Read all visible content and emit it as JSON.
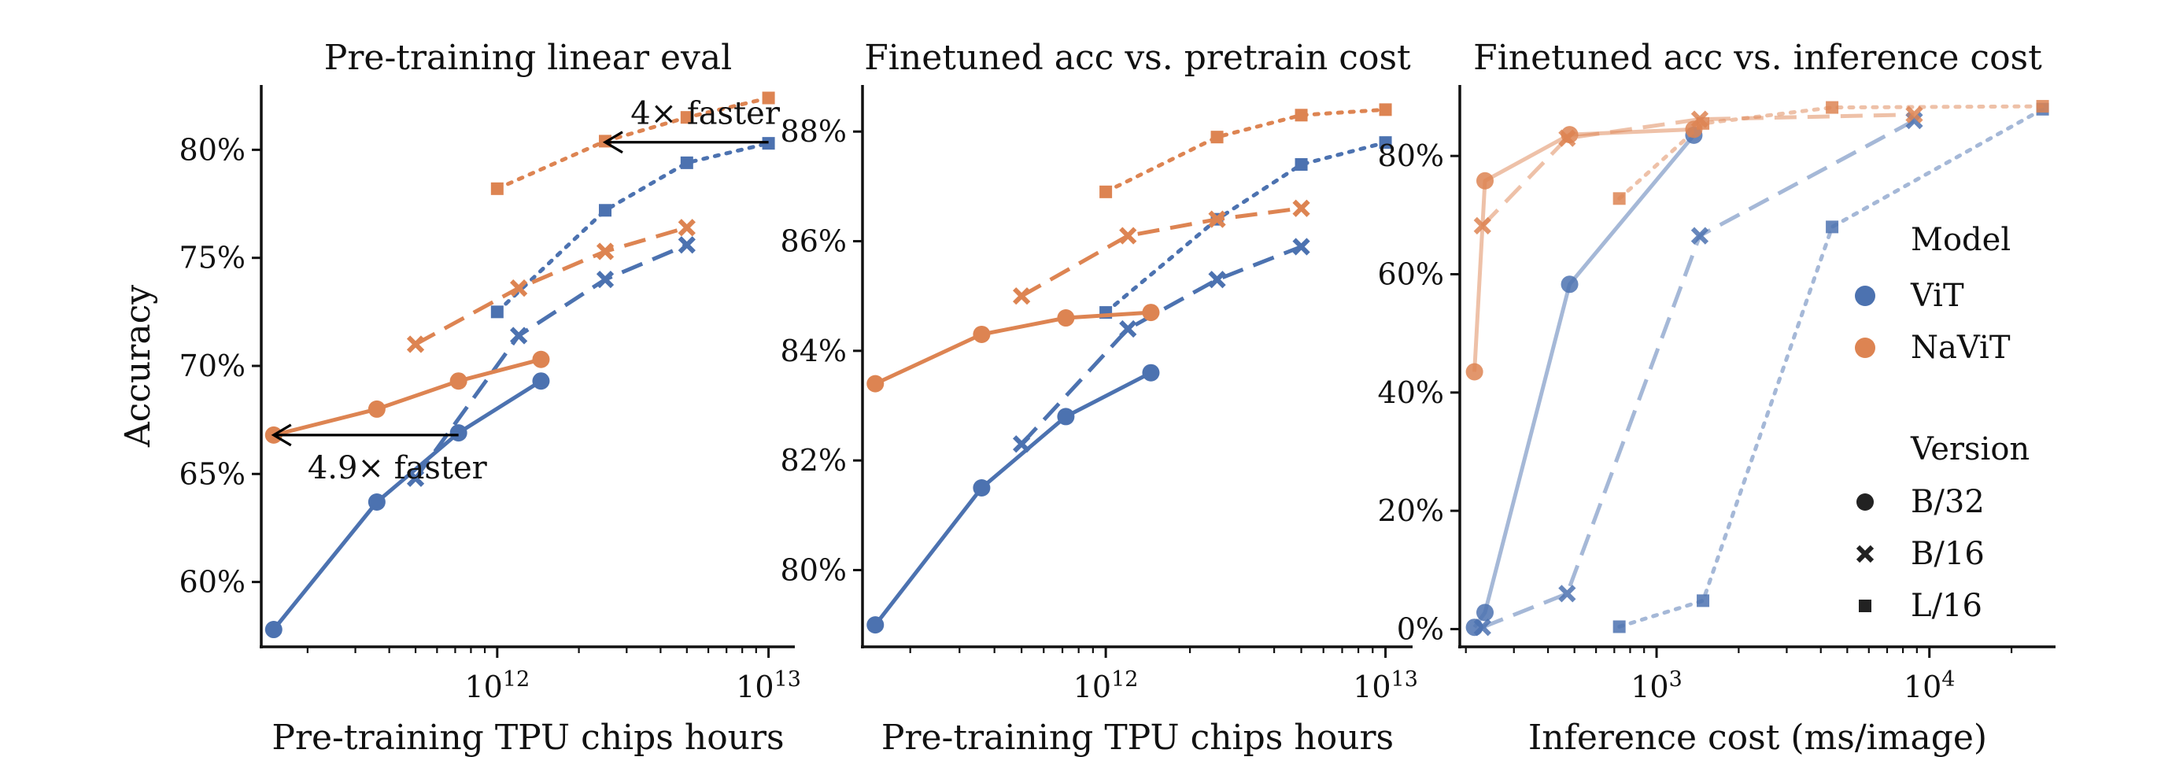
{
  "colors": {
    "vit": "#4c72b0",
    "navit": "#dd8452",
    "axis": "#111111"
  },
  "chart_data": [
    {
      "type": "line",
      "title": "Pre-training linear eval",
      "xlabel": "Pre-training TPU chips hours",
      "ylabel": "Accuracy",
      "xscale": "log",
      "xlim": [
        135000000000.0,
        12500000000000.0
      ],
      "ylim": [
        57,
        83
      ],
      "xticks": [
        {
          "value": 1000000000000.0,
          "label": "10^12"
        },
        {
          "value": 10000000000000.0,
          "label": "10^13"
        }
      ],
      "yticks": [
        {
          "value": 60,
          "label": "60%"
        },
        {
          "value": 65,
          "label": "65%"
        },
        {
          "value": 70,
          "label": "70%"
        },
        {
          "value": 75,
          "label": "75%"
        },
        {
          "value": 80,
          "label": "80%"
        }
      ],
      "series": [
        {
          "name": "ViT B/32",
          "model": "ViT",
          "version": "B/32",
          "x": [
            150000000000.0,
            360000000000.0,
            720000000000.0,
            1450000000000.0
          ],
          "y": [
            57.8,
            63.7,
            66.9,
            69.3
          ]
        },
        {
          "name": "ViT B/16",
          "model": "ViT",
          "version": "B/16",
          "x": [
            500000000000.0,
            1200000000000.0,
            2500000000000.0,
            5000000000000.0
          ],
          "y": [
            64.8,
            71.4,
            74.0,
            75.6
          ]
        },
        {
          "name": "ViT L/16",
          "model": "ViT",
          "version": "L/16",
          "x": [
            1000000000000.0,
            2500000000000.0,
            5000000000000.0,
            10000000000000.0
          ],
          "y": [
            72.5,
            77.2,
            79.4,
            80.3
          ]
        },
        {
          "name": "NaViT B/32",
          "model": "NaViT",
          "version": "B/32",
          "x": [
            150000000000.0,
            360000000000.0,
            720000000000.0,
            1450000000000.0
          ],
          "y": [
            66.8,
            68.0,
            69.3,
            70.3
          ]
        },
        {
          "name": "NaViT B/16",
          "model": "NaViT",
          "version": "B/16",
          "x": [
            500000000000.0,
            1200000000000.0,
            2500000000000.0,
            5000000000000.0
          ],
          "y": [
            71.0,
            73.6,
            75.3,
            76.4
          ]
        },
        {
          "name": "NaViT L/16",
          "model": "NaViT",
          "version": "L/16",
          "x": [
            1000000000000.0,
            2500000000000.0,
            5000000000000.0,
            10000000000000.0
          ],
          "y": [
            78.2,
            80.4,
            81.5,
            82.4
          ]
        }
      ],
      "annotations": [
        {
          "text": "4× faster",
          "from": [
            10000000000000.0,
            80.35
          ],
          "to": [
            2500000000000.0,
            80.35
          ],
          "text_at": [
            3100000000000.0,
            81.7
          ]
        },
        {
          "text": "4.9× faster",
          "from": [
            720000000000.0,
            66.8
          ],
          "to": [
            150000000000.0,
            66.8
          ],
          "text_at": [
            200000000000.0,
            65.3
          ]
        }
      ]
    },
    {
      "type": "line",
      "title": "Finetuned acc vs. pretrain cost",
      "xlabel": "Pre-training TPU chips hours",
      "ylabel": "",
      "xscale": "log",
      "xlim": [
        135000000000.0,
        12500000000000.0
      ],
      "ylim": [
        78.6,
        88.85
      ],
      "xticks": [
        {
          "value": 1000000000000.0,
          "label": "10^12"
        },
        {
          "value": 10000000000000.0,
          "label": "10^13"
        }
      ],
      "yticks": [
        {
          "value": 80,
          "label": "80%"
        },
        {
          "value": 82,
          "label": "82%"
        },
        {
          "value": 84,
          "label": "84%"
        },
        {
          "value": 86,
          "label": "86%"
        },
        {
          "value": 88,
          "label": "88%"
        }
      ],
      "series": [
        {
          "name": "ViT B/32",
          "model": "ViT",
          "version": "B/32",
          "x": [
            150000000000.0,
            360000000000.0,
            720000000000.0,
            1450000000000.0
          ],
          "y": [
            79.0,
            81.5,
            82.8,
            83.6
          ]
        },
        {
          "name": "ViT B/16",
          "model": "ViT",
          "version": "B/16",
          "x": [
            500000000000.0,
            1200000000000.0,
            2500000000000.0,
            5000000000000.0
          ],
          "y": [
            82.3,
            84.4,
            85.3,
            85.9
          ]
        },
        {
          "name": "ViT L/16",
          "model": "ViT",
          "version": "L/16",
          "x": [
            1000000000000.0,
            2500000000000.0,
            5000000000000.0,
            10000000000000.0
          ],
          "y": [
            84.7,
            86.4,
            87.4,
            87.8
          ]
        },
        {
          "name": "NaViT B/32",
          "model": "NaViT",
          "version": "B/32",
          "x": [
            150000000000.0,
            360000000000.0,
            720000000000.0,
            1450000000000.0
          ],
          "y": [
            83.4,
            84.3,
            84.6,
            84.7
          ]
        },
        {
          "name": "NaViT B/16",
          "model": "NaViT",
          "version": "B/16",
          "x": [
            500000000000.0,
            1200000000000.0,
            2500000000000.0,
            5000000000000.0
          ],
          "y": [
            85.0,
            86.1,
            86.4,
            86.6
          ]
        },
        {
          "name": "NaViT L/16",
          "model": "NaViT",
          "version": "L/16",
          "x": [
            1000000000000.0,
            2500000000000.0,
            5000000000000.0,
            10000000000000.0
          ],
          "y": [
            86.9,
            87.9,
            88.3,
            88.4
          ]
        }
      ]
    },
    {
      "type": "line",
      "title": "Finetuned acc vs. inference cost",
      "xlabel": "Inference cost (ms/image)",
      "ylabel": "",
      "xscale": "log",
      "xlim": [
        190,
        29000
      ],
      "ylim": [
        -3,
        92
      ],
      "xticks": [
        {
          "value": 1000,
          "label": "10^3"
        },
        {
          "value": 10000,
          "label": "10^4"
        }
      ],
      "yticks": [
        {
          "value": 0,
          "label": "0%"
        },
        {
          "value": 20,
          "label": "20%"
        },
        {
          "value": 40,
          "label": "40%"
        },
        {
          "value": 60,
          "label": "60%"
        },
        {
          "value": 80,
          "label": "80%"
        }
      ],
      "series": [
        {
          "name": "ViT B/32",
          "model": "ViT",
          "version": "B/32",
          "x": [
            215,
            235,
            480,
            1370
          ],
          "y": [
            0.3,
            2.8,
            58.3,
            83.5
          ]
        },
        {
          "name": "ViT B/16",
          "model": "ViT",
          "version": "B/16",
          "x": [
            230,
            470,
            1440,
            8800
          ],
          "y": [
            0.3,
            6.0,
            66.5,
            86.0
          ]
        },
        {
          "name": "ViT L/16",
          "model": "ViT",
          "version": "L/16",
          "x": [
            730,
            1480,
            4400,
            26000
          ],
          "y": [
            0.4,
            4.8,
            68.0,
            87.9
          ]
        },
        {
          "name": "NaViT B/32",
          "model": "NaViT",
          "version": "B/32",
          "x": [
            215,
            235,
            480,
            1370
          ],
          "y": [
            43.5,
            75.8,
            83.6,
            84.5
          ]
        },
        {
          "name": "NaViT B/16",
          "model": "NaViT",
          "version": "B/16",
          "x": [
            230,
            470,
            1440,
            8800
          ],
          "y": [
            68.2,
            83.0,
            86.2,
            87.0
          ]
        },
        {
          "name": "NaViT L/16",
          "model": "NaViT",
          "version": "L/16",
          "x": [
            730,
            1480,
            4400,
            26000
          ],
          "y": [
            72.8,
            85.5,
            88.2,
            88.4
          ]
        }
      ],
      "legend": {
        "placement": "center-right",
        "model_title": "Model",
        "models": [
          {
            "label": "ViT",
            "key": "vit"
          },
          {
            "label": "NaViT",
            "key": "navit"
          }
        ],
        "version_title": "Version",
        "versions": [
          {
            "label": "B/32",
            "marker": "circle"
          },
          {
            "label": "B/16",
            "marker": "cross"
          },
          {
            "label": "L/16",
            "marker": "square"
          }
        ]
      }
    }
  ]
}
